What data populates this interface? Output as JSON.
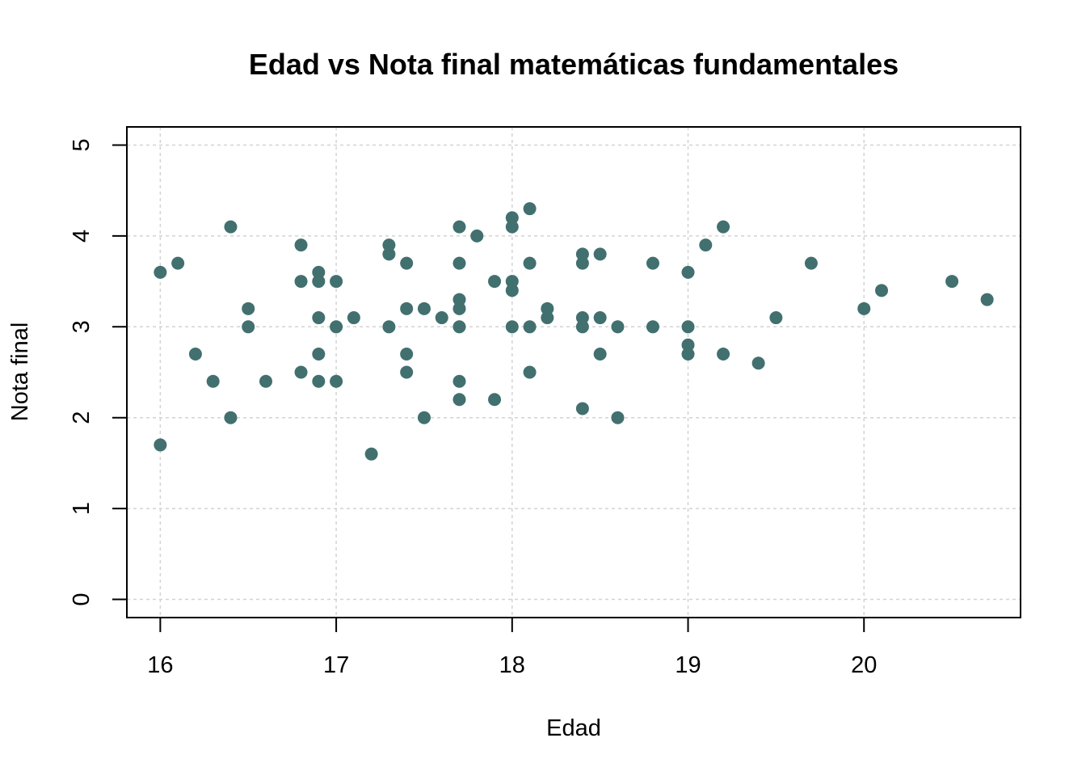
{
  "chart_data": {
    "type": "scatter",
    "title": "Edad vs Nota final matemáticas fundamentales",
    "xlabel": "Edad",
    "ylabel": "Nota final",
    "xlim": [
      15.81,
      20.89
    ],
    "ylim": [
      -0.2,
      5.2
    ],
    "x_ticks": [
      16,
      17,
      18,
      19,
      20
    ],
    "y_ticks": [
      0,
      1,
      2,
      3,
      4,
      5
    ],
    "grid": true,
    "point_color": "#41706f",
    "points": [
      {
        "x": 16.0,
        "y": 3.6
      },
      {
        "x": 16.0,
        "y": 1.7
      },
      {
        "x": 16.1,
        "y": 3.7
      },
      {
        "x": 16.2,
        "y": 2.7
      },
      {
        "x": 16.3,
        "y": 2.4
      },
      {
        "x": 16.4,
        "y": 4.1
      },
      {
        "x": 16.4,
        "y": 2.0
      },
      {
        "x": 16.5,
        "y": 3.2
      },
      {
        "x": 16.5,
        "y": 3.0
      },
      {
        "x": 16.6,
        "y": 2.4
      },
      {
        "x": 16.8,
        "y": 3.9
      },
      {
        "x": 16.8,
        "y": 3.5
      },
      {
        "x": 16.8,
        "y": 2.5
      },
      {
        "x": 16.9,
        "y": 3.6
      },
      {
        "x": 16.9,
        "y": 3.5
      },
      {
        "x": 16.9,
        "y": 3.1
      },
      {
        "x": 16.9,
        "y": 2.7
      },
      {
        "x": 16.9,
        "y": 2.4
      },
      {
        "x": 17.0,
        "y": 3.5
      },
      {
        "x": 17.0,
        "y": 3.0
      },
      {
        "x": 17.0,
        "y": 2.4
      },
      {
        "x": 17.1,
        "y": 3.1
      },
      {
        "x": 17.2,
        "y": 1.6
      },
      {
        "x": 17.3,
        "y": 3.9
      },
      {
        "x": 17.3,
        "y": 3.8
      },
      {
        "x": 17.3,
        "y": 3.0
      },
      {
        "x": 17.4,
        "y": 3.7
      },
      {
        "x": 17.4,
        "y": 3.2
      },
      {
        "x": 17.4,
        "y": 2.7
      },
      {
        "x": 17.4,
        "y": 2.5
      },
      {
        "x": 17.5,
        "y": 3.2
      },
      {
        "x": 17.5,
        "y": 2.0
      },
      {
        "x": 17.6,
        "y": 3.1
      },
      {
        "x": 17.7,
        "y": 4.1
      },
      {
        "x": 17.7,
        "y": 3.7
      },
      {
        "x": 17.7,
        "y": 3.3
      },
      {
        "x": 17.7,
        "y": 3.2
      },
      {
        "x": 17.7,
        "y": 3.0
      },
      {
        "x": 17.7,
        "y": 2.4
      },
      {
        "x": 17.7,
        "y": 2.2
      },
      {
        "x": 17.8,
        "y": 4.0
      },
      {
        "x": 17.9,
        "y": 3.5
      },
      {
        "x": 17.9,
        "y": 2.2
      },
      {
        "x": 18.0,
        "y": 4.2
      },
      {
        "x": 18.0,
        "y": 4.1
      },
      {
        "x": 18.0,
        "y": 3.5
      },
      {
        "x": 18.0,
        "y": 3.4
      },
      {
        "x": 18.0,
        "y": 3.0
      },
      {
        "x": 18.1,
        "y": 4.3
      },
      {
        "x": 18.1,
        "y": 3.7
      },
      {
        "x": 18.1,
        "y": 3.0
      },
      {
        "x": 18.1,
        "y": 2.5
      },
      {
        "x": 18.2,
        "y": 3.2
      },
      {
        "x": 18.2,
        "y": 3.1
      },
      {
        "x": 18.4,
        "y": 3.8
      },
      {
        "x": 18.4,
        "y": 3.7
      },
      {
        "x": 18.4,
        "y": 3.1
      },
      {
        "x": 18.4,
        "y": 3.0
      },
      {
        "x": 18.4,
        "y": 2.1
      },
      {
        "x": 18.5,
        "y": 3.8
      },
      {
        "x": 18.5,
        "y": 3.1
      },
      {
        "x": 18.5,
        "y": 2.7
      },
      {
        "x": 18.6,
        "y": 3.0
      },
      {
        "x": 18.6,
        "y": 2.0
      },
      {
        "x": 18.8,
        "y": 3.7
      },
      {
        "x": 18.8,
        "y": 3.0
      },
      {
        "x": 19.0,
        "y": 3.6
      },
      {
        "x": 19.0,
        "y": 3.0
      },
      {
        "x": 19.0,
        "y": 2.8
      },
      {
        "x": 19.0,
        "y": 2.7
      },
      {
        "x": 19.1,
        "y": 3.9
      },
      {
        "x": 19.2,
        "y": 4.1
      },
      {
        "x": 19.2,
        "y": 2.7
      },
      {
        "x": 19.4,
        "y": 2.6
      },
      {
        "x": 19.5,
        "y": 3.1
      },
      {
        "x": 19.7,
        "y": 3.7
      },
      {
        "x": 20.0,
        "y": 3.2
      },
      {
        "x": 20.1,
        "y": 3.4
      },
      {
        "x": 20.5,
        "y": 3.5
      },
      {
        "x": 20.7,
        "y": 3.3
      }
    ]
  }
}
